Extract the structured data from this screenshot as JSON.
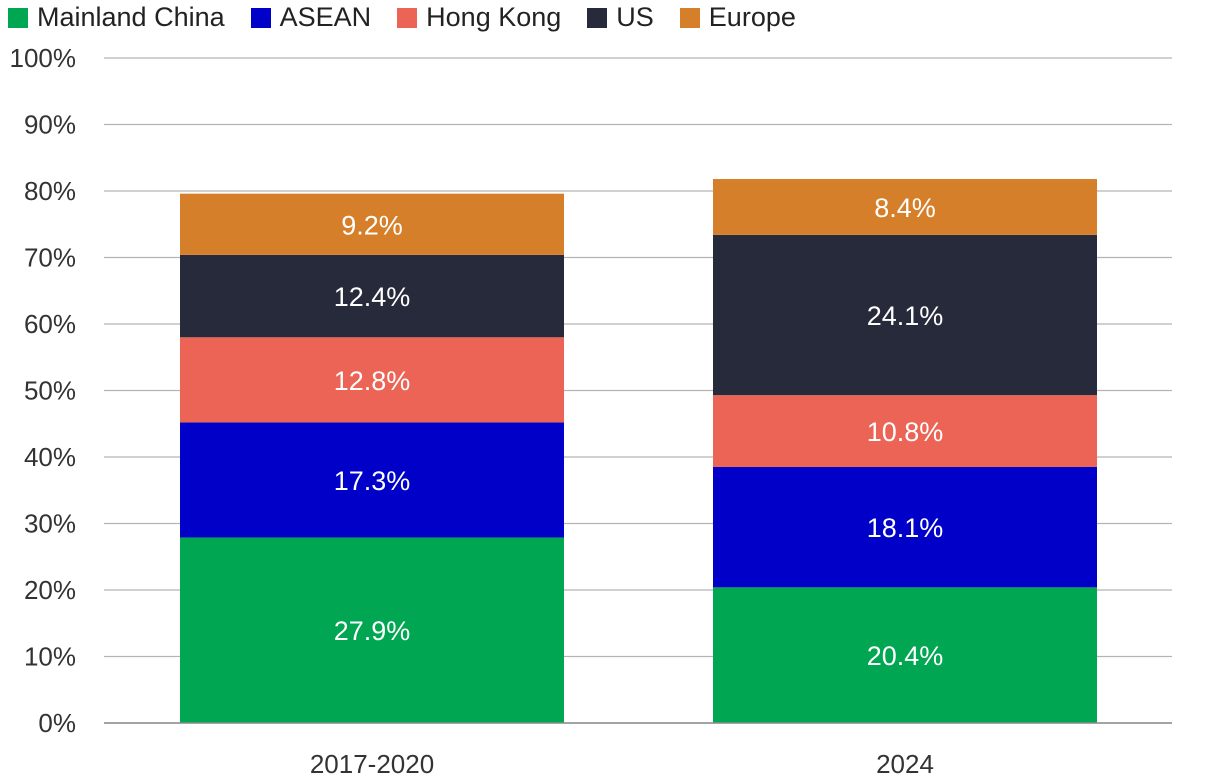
{
  "chart_data": {
    "type": "bar",
    "stacked": true,
    "title": "",
    "xlabel": "",
    "ylabel": "",
    "ylim": [
      0,
      100
    ],
    "yticks": [
      "0%",
      "10%",
      "20%",
      "30%",
      "40%",
      "50%",
      "60%",
      "70%",
      "80%",
      "90%",
      "100%"
    ],
    "categories": [
      "2017-2020",
      "2024"
    ],
    "legend_position": "top-left",
    "series": [
      {
        "name": "Mainland China",
        "color": "#00a651",
        "values": [
          27.9,
          20.4
        ],
        "labels": [
          "27.9%",
          "20.4%"
        ]
      },
      {
        "name": "ASEAN",
        "color": "#0000c8",
        "values": [
          17.3,
          18.1
        ],
        "labels": [
          "17.3%",
          "18.1%"
        ]
      },
      {
        "name": "Hong Kong",
        "color": "#eb6455",
        "values": [
          12.8,
          10.8
        ],
        "labels": [
          "12.8%",
          "10.8%"
        ]
      },
      {
        "name": "US",
        "color": "#272a3a",
        "values": [
          12.4,
          24.1
        ],
        "labels": [
          "12.4%",
          "24.1%"
        ]
      },
      {
        "name": "Europe",
        "color": "#d67f2a",
        "values": [
          9.2,
          8.4
        ],
        "labels": [
          "9.2%",
          "8.4%"
        ]
      }
    ]
  }
}
